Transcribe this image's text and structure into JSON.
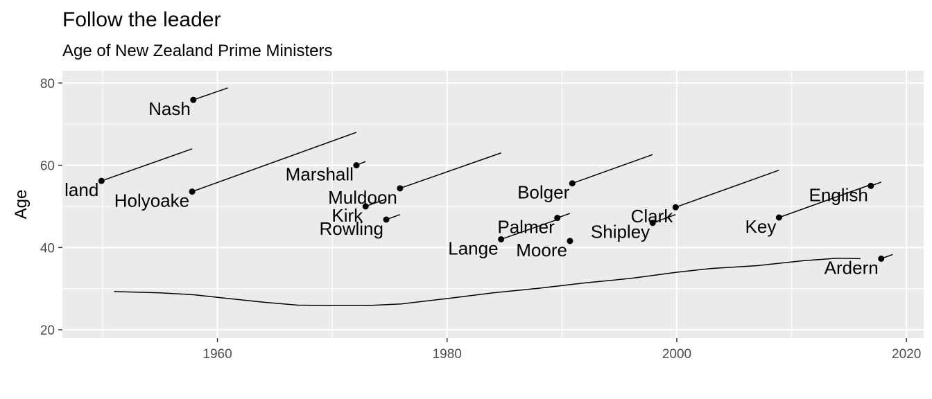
{
  "chart_data": {
    "type": "scatter",
    "title": "Follow the leader",
    "subtitle": "Age of New Zealand Prime Ministers",
    "xlabel": "",
    "ylabel": "Age",
    "xlim": [
      1946.5,
      2021.5
    ],
    "ylim": [
      18,
      83
    ],
    "x_ticks": [
      1960,
      1980,
      2000,
      2020
    ],
    "y_ticks": [
      20,
      40,
      60,
      80
    ],
    "grid": true,
    "background": "#ebebeb",
    "gridline_color": "#ffffff",
    "point_color": "#000000",
    "leaders": [
      {
        "name": "Holland",
        "label": "land",
        "start": 1949.9,
        "age": 56.2,
        "end": 1957.8,
        "end_age": 64.0
      },
      {
        "name": "Holyoake",
        "label": "Holyoake",
        "start": 1957.8,
        "age": 53.6,
        "end": 1972.1,
        "end_age": 68.0
      },
      {
        "name": "Nash",
        "label": "Nash",
        "start": 1957.9,
        "age": 75.9,
        "end": 1960.9,
        "end_age": 78.8
      },
      {
        "name": "Marshall",
        "label": "Marshall",
        "start": 1972.1,
        "age": 60.0,
        "end": 1972.9,
        "end_age": 60.9
      },
      {
        "name": "Kirk",
        "label": "Kirk",
        "start": 1972.9,
        "age": 50.0,
        "end": 1974.7,
        "end_age": 51.8
      },
      {
        "name": "Rowling",
        "label": "Rowling",
        "start": 1974.7,
        "age": 46.8,
        "end": 1975.9,
        "end_age": 48.0
      },
      {
        "name": "Muldoon",
        "label": "Muldoon",
        "start": 1975.9,
        "age": 54.4,
        "end": 1984.7,
        "end_age": 63.0
      },
      {
        "name": "Lange",
        "label": "Lange",
        "start": 1984.7,
        "age": 42.0,
        "end": 1989.6,
        "end_age": 46.8
      },
      {
        "name": "Palmer",
        "label": "Palmer",
        "start": 1989.6,
        "age": 47.2,
        "end": 1990.7,
        "end_age": 48.3
      },
      {
        "name": "Moore",
        "label": "Moore",
        "start": 1990.7,
        "age": 41.6,
        "end": 1990.8,
        "end_age": 41.7
      },
      {
        "name": "Bolger",
        "label": "Bolger",
        "start": 1990.9,
        "age": 55.6,
        "end": 1997.9,
        "end_age": 62.6
      },
      {
        "name": "Shipley",
        "label": "Shipley",
        "start": 1997.9,
        "age": 46.0,
        "end": 1999.9,
        "end_age": 48.0
      },
      {
        "name": "Clark",
        "label": "Clark",
        "start": 1999.9,
        "age": 49.8,
        "end": 2008.9,
        "end_age": 58.8
      },
      {
        "name": "Key",
        "label": "Key",
        "start": 2008.9,
        "age": 47.3,
        "end": 2016.9,
        "end_age": 55.3
      },
      {
        "name": "English",
        "label": "English",
        "start": 2016.9,
        "age": 55.0,
        "end": 2017.8,
        "end_age": 55.9
      },
      {
        "name": "Ardern",
        "label": "Ardern",
        "start": 2017.8,
        "age": 37.3,
        "end": 2018.8,
        "end_age": 38.3
      }
    ],
    "trend_line": {
      "x": [
        1951,
        1955,
        1958,
        1961,
        1964,
        1967,
        1970,
        1973,
        1976,
        1980,
        1984,
        1988,
        1992,
        1996,
        2000,
        2003,
        2007,
        2011,
        2014,
        2016
      ],
      "y": [
        29.3,
        29.0,
        28.5,
        27.6,
        26.7,
        26.0,
        25.9,
        25.9,
        26.3,
        27.6,
        29.0,
        30.1,
        31.4,
        32.5,
        34.0,
        34.9,
        35.6,
        36.8,
        37.4,
        37.3
      ]
    }
  }
}
